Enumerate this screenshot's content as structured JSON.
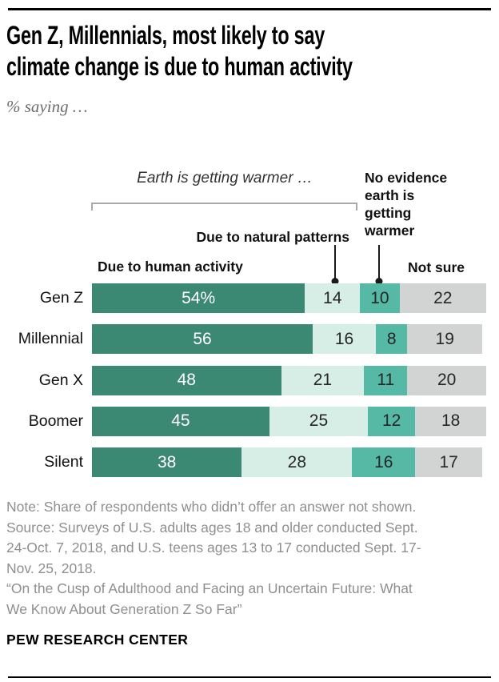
{
  "header": {
    "title": "Gen Z, Millennials, most likely to say\nclimate change is due to human activity",
    "subtitle": "% saying …"
  },
  "annotations": {
    "earth_group": "Earth is getting warmer …",
    "human": "Due to human activity",
    "natural": "Due to natural patterns",
    "no_evidence": "No evidence\nearth is\ngetting\nwarmer",
    "not_sure": "Not sure"
  },
  "colors": {
    "human_activity": "#3c8973",
    "natural_patterns": "#d6eee5",
    "no_evidence": "#55b9a6",
    "not_sure": "#d2d3d3"
  },
  "chart_data": {
    "type": "bar",
    "stacked": true,
    "orientation": "horizontal",
    "xlim": [
      0,
      100
    ],
    "unit": "%",
    "categories": [
      "Gen Z",
      "Millennial",
      "Gen X",
      "Boomer",
      "Silent"
    ],
    "series": [
      {
        "name": "Due to human activity",
        "color": "#3c8973",
        "values": [
          54,
          56,
          48,
          45,
          38
        ]
      },
      {
        "name": "Due to natural patterns",
        "color": "#d6eee5",
        "values": [
          14,
          16,
          21,
          25,
          28
        ]
      },
      {
        "name": "No evidence earth is getting warmer",
        "color": "#55b9a6",
        "values": [
          10,
          8,
          11,
          12,
          16
        ]
      },
      {
        "name": "Not sure",
        "color": "#d2d3d3",
        "values": [
          22,
          19,
          20,
          18,
          17
        ]
      }
    ],
    "value_labels": [
      [
        "54%",
        "14",
        "10",
        "22"
      ],
      [
        "56",
        "16",
        "8",
        "19"
      ],
      [
        "48",
        "21",
        "11",
        "20"
      ],
      [
        "45",
        "25",
        "12",
        "18"
      ],
      [
        "38",
        "28",
        "16",
        "17"
      ]
    ],
    "legend_position": "annotations-above-bars",
    "grid": false
  },
  "footer": {
    "note": "Note: Share of respondents who didn’t offer an answer not shown.\nSource: Surveys of U.S. adults ages 18 and older conducted Sept.\n24-Oct. 7, 2018, and U.S. teens ages 13 to 17 conducted Sept. 17-\nNov. 25, 2018.\n“On the Cusp of Adulthood and Facing an Uncertain Future: What\nWe Know About Generation Z So Far”",
    "brand": "PEW RESEARCH CENTER"
  }
}
